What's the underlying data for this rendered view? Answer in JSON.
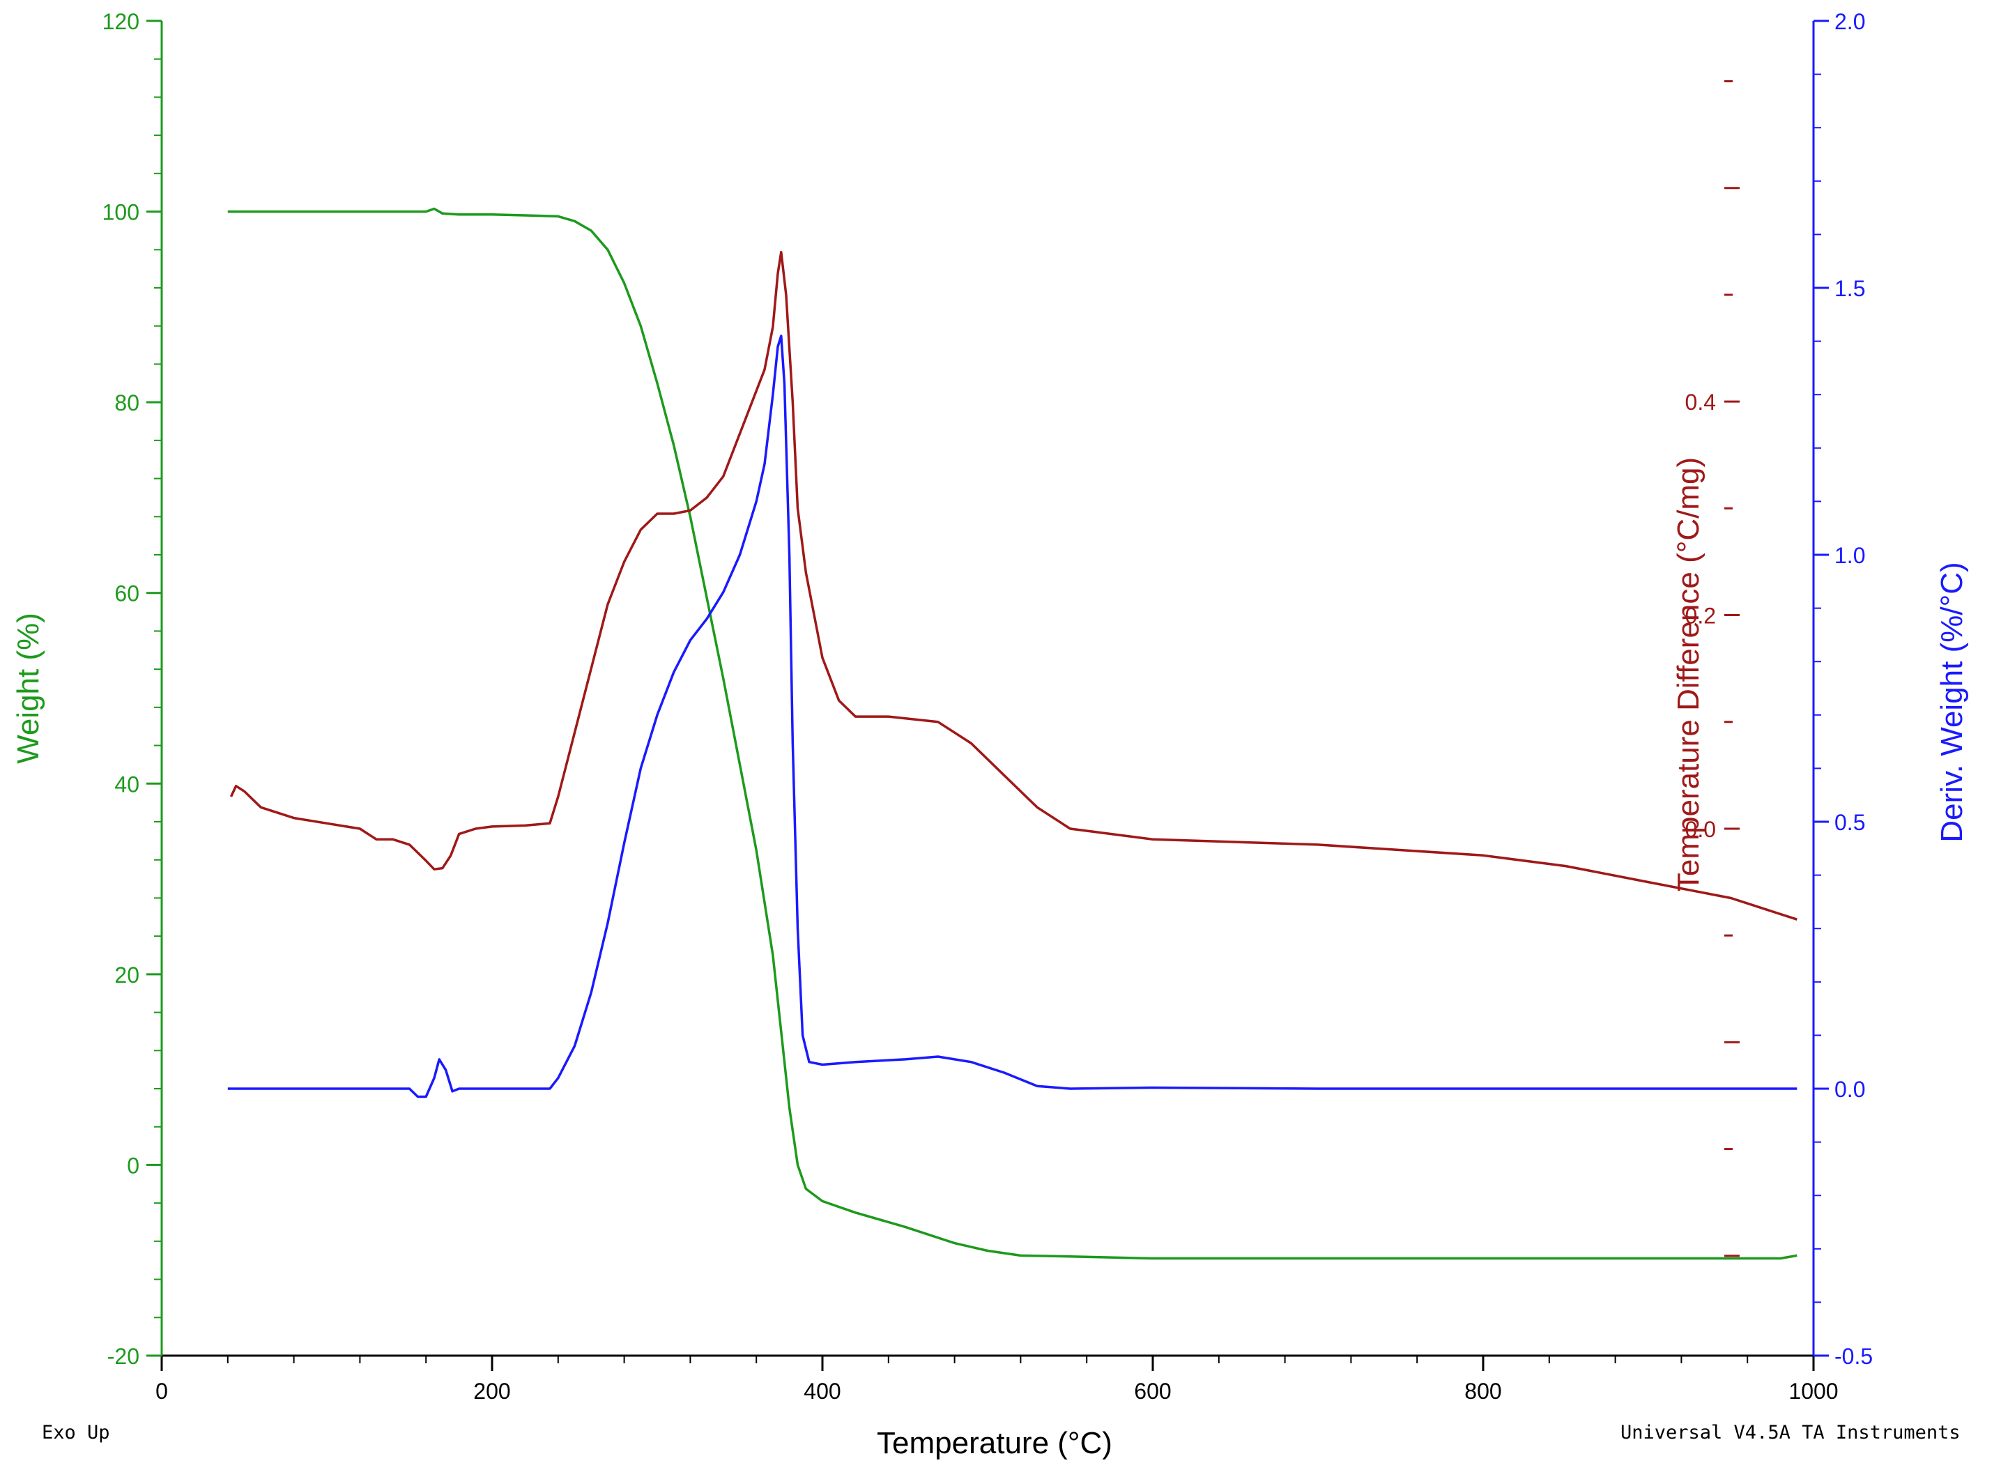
{
  "chart_data": {
    "type": "line",
    "xlabel": "Temperature (°C)",
    "xlim": [
      0,
      1000
    ],
    "xticks": [
      0,
      200,
      400,
      600,
      800,
      1000
    ],
    "footer_left": "Exo Up",
    "footer_right": "Universal V4.5A TA Instruments",
    "grid": false,
    "axes": {
      "weight": {
        "label": "Weight (%)",
        "color": "#1d9a1d",
        "ylim": [
          -20,
          120
        ],
        "ticks": [
          -20,
          0,
          20,
          40,
          60,
          80,
          100,
          120
        ],
        "tick_labels": [
          "-20",
          "0",
          "20",
          "40",
          "60",
          "80",
          "100",
          "120"
        ]
      },
      "temp_diff": {
        "label": "Temperature Difference (°C/mg)",
        "color": "#a01818",
        "ylim": [
          -0.4935,
          0.7565
        ],
        "ticks": [
          0.0,
          0.2,
          0.4
        ],
        "tick_labels": [
          "0.0",
          "0.2",
          "0.4"
        ]
      },
      "deriv": {
        "label": "Deriv. Weight (%/°C)",
        "color": "#1a1aff",
        "ylim": [
          -0.5,
          2.0
        ],
        "ticks": [
          -0.5,
          0.0,
          0.5,
          1.0,
          1.5,
          2.0
        ],
        "tick_labels": [
          "-0.5",
          "0.0",
          "0.5",
          "1.0",
          "1.5",
          "2.0"
        ]
      }
    },
    "series": [
      {
        "axis": "weight",
        "x": [
          40,
          100,
          160,
          165,
          170,
          180,
          200,
          220,
          240,
          250,
          260,
          270,
          280,
          290,
          300,
          310,
          320,
          330,
          340,
          350,
          360,
          370,
          375,
          380,
          385,
          390,
          400,
          420,
          450,
          480,
          500,
          520,
          550,
          600,
          700,
          800,
          900,
          980,
          990
        ],
        "y": [
          100,
          100,
          100,
          100.3,
          99.8,
          99.7,
          99.7,
          99.6,
          99.5,
          99.0,
          98.0,
          96.0,
          92.5,
          88.0,
          82.0,
          75.5,
          68.0,
          59.5,
          51.0,
          42.0,
          33.0,
          22.0,
          14.0,
          6.0,
          0.0,
          -2.5,
          -3.8,
          -5.0,
          -6.5,
          -8.2,
          -9.0,
          -9.5,
          -9.6,
          -9.8,
          -9.8,
          -9.8,
          -9.8,
          -9.8,
          -9.5
        ]
      },
      {
        "axis": "temp_diff",
        "x": [
          42,
          45,
          50,
          60,
          80,
          100,
          120,
          130,
          140,
          150,
          160,
          165,
          170,
          175,
          180,
          190,
          200,
          220,
          235,
          240,
          250,
          260,
          270,
          280,
          290,
          300,
          310,
          320,
          330,
          340,
          350,
          360,
          365,
          370,
          373,
          375,
          378,
          382,
          385,
          390,
          400,
          410,
          420,
          440,
          470,
          490,
          510,
          530,
          550,
          600,
          700,
          800,
          850,
          900,
          950,
          990
        ],
        "y": [
          0.03,
          0.04,
          0.035,
          0.02,
          0.01,
          0.005,
          0.0,
          -0.01,
          -0.01,
          -0.015,
          -0.03,
          -0.038,
          -0.037,
          -0.025,
          -0.005,
          0.0,
          0.002,
          0.003,
          0.005,
          0.03,
          0.09,
          0.15,
          0.21,
          0.25,
          0.28,
          0.295,
          0.295,
          0.298,
          0.31,
          0.33,
          0.37,
          0.41,
          0.43,
          0.47,
          0.52,
          0.54,
          0.5,
          0.4,
          0.3,
          0.24,
          0.16,
          0.12,
          0.105,
          0.105,
          0.1,
          0.08,
          0.05,
          0.02,
          0.0,
          -0.01,
          -0.015,
          -0.025,
          -0.035,
          -0.05,
          -0.065,
          -0.085
        ]
      },
      {
        "axis": "deriv",
        "x": [
          40,
          150,
          155,
          160,
          165,
          168,
          172,
          176,
          180,
          200,
          230,
          235,
          240,
          250,
          260,
          270,
          280,
          290,
          300,
          310,
          320,
          330,
          340,
          350,
          360,
          365,
          370,
          373,
          375,
          377,
          380,
          382,
          385,
          388,
          392,
          400,
          420,
          450,
          470,
          490,
          510,
          530,
          550,
          600,
          700,
          800,
          900,
          990
        ],
        "y": [
          0.0,
          0.0,
          -0.015,
          -0.015,
          0.02,
          0.055,
          0.035,
          -0.005,
          0.0,
          0.0,
          0.0,
          0.0,
          0.02,
          0.08,
          0.18,
          0.31,
          0.46,
          0.6,
          0.7,
          0.78,
          0.84,
          0.88,
          0.93,
          1.0,
          1.1,
          1.17,
          1.3,
          1.39,
          1.41,
          1.32,
          1.0,
          0.65,
          0.3,
          0.1,
          0.05,
          0.045,
          0.05,
          0.055,
          0.06,
          0.05,
          0.03,
          0.005,
          0.0,
          0.002,
          0.0,
          0.0,
          0.0,
          0.0
        ]
      }
    ]
  }
}
